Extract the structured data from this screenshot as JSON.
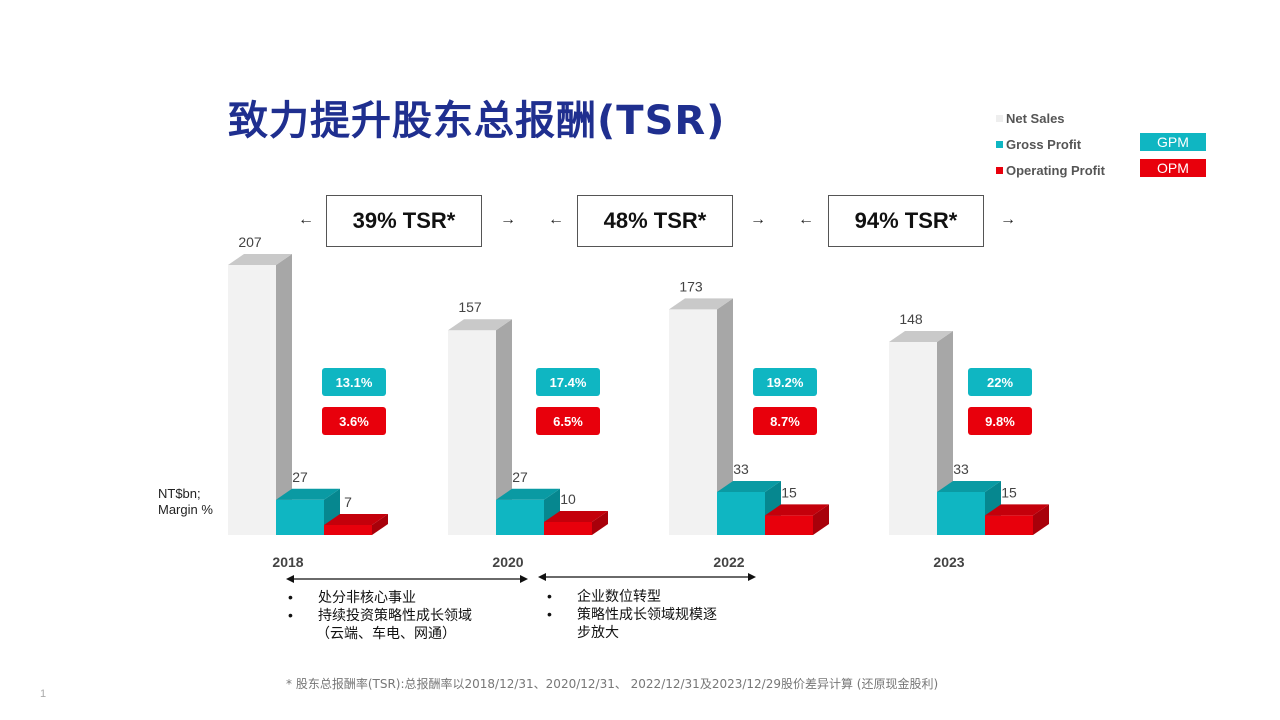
{
  "title": "致力提升股东总报酬(TSR)",
  "legend": {
    "items": [
      {
        "label": "Net Sales",
        "color": "#eeeeee"
      },
      {
        "label": "Gross Profit",
        "color": "#0fb6c2"
      },
      {
        "label": "Operating Profit",
        "color": "#e8000c"
      }
    ],
    "badges": [
      {
        "label": "GPM",
        "color": "#0fb6c2"
      },
      {
        "label": "OPM",
        "color": "#e8000c"
      }
    ]
  },
  "tsr": [
    {
      "label": "39%  TSR*"
    },
    {
      "label": "48%  TSR*"
    },
    {
      "label": "94%  TSR*"
    }
  ],
  "arrows": {
    "left": "←",
    "right": "→"
  },
  "unit_label": {
    "line1": "NT$bn;",
    "line2": "Margin %"
  },
  "chart_data": {
    "type": "bar",
    "title": "",
    "categories": [
      "2018",
      "2020",
      "2022",
      "2023"
    ],
    "series": [
      {
        "name": "Net Sales",
        "values": [
          207,
          157,
          173,
          148
        ],
        "color": "#eeeeee"
      },
      {
        "name": "Gross Profit",
        "values": [
          27,
          27,
          33,
          33
        ],
        "color": "#0fb6c2"
      },
      {
        "name": "Operating Profit",
        "values": [
          7,
          10,
          15,
          15
        ],
        "color": "#e8000c"
      }
    ],
    "margins": {
      "GPM": [
        "13.1%",
        "17.4%",
        "19.2%",
        "22%"
      ],
      "OPM": [
        "3.6%",
        "6.5%",
        "8.7%",
        "9.8%"
      ]
    },
    "ylabel": "NT$bn; Margin %",
    "ylim": [
      0,
      207
    ]
  },
  "notes": {
    "left": [
      "处分非核心事业",
      "持续投资策略性成长领域",
      "（云端、车电、网通）"
    ],
    "right": [
      "企业数位转型",
      "策略性成长领域规模逐",
      "步放大"
    ]
  },
  "footnote": "* 股东总报酬率(TSR):总报酬率以2018/12/31、2020/12/31、 2022/12/31及2023/12/29股价差异计算 (还原现金股利)",
  "page_number": "1"
}
